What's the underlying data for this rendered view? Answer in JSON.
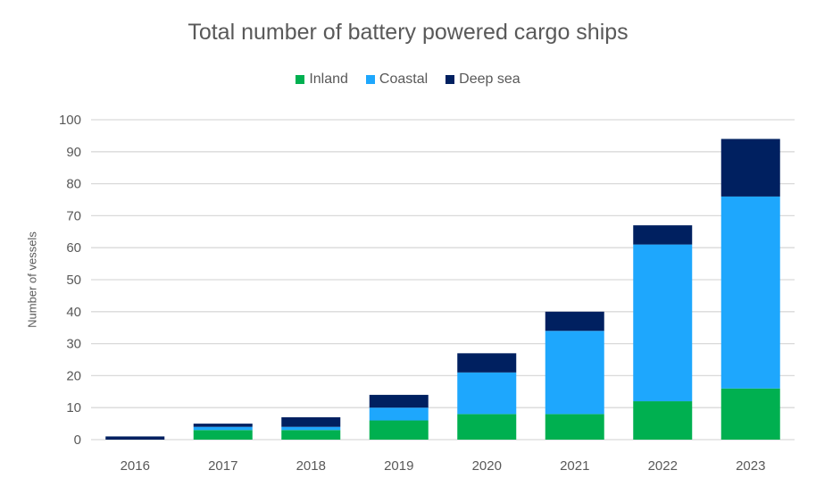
{
  "chart_data": {
    "type": "bar",
    "stacked": true,
    "title": "Total number of battery powered cargo ships",
    "xlabel": "",
    "ylabel": "Number of vessels",
    "categories": [
      "2016",
      "2017",
      "2018",
      "2019",
      "2020",
      "2021",
      "2022",
      "2023"
    ],
    "series": [
      {
        "name": "Inland",
        "color": "#00B050",
        "values": [
          0,
          3,
          3,
          6,
          8,
          8,
          12,
          16
        ]
      },
      {
        "name": "Coastal",
        "color": "#1EA7FD",
        "values": [
          0,
          1,
          1,
          4,
          13,
          26,
          49,
          60
        ]
      },
      {
        "name": "Deep sea",
        "color": "#002060",
        "values": [
          1,
          1,
          3,
          4,
          6,
          6,
          6,
          18
        ]
      }
    ],
    "ylim": [
      0,
      100
    ],
    "yticks": [
      0,
      10,
      20,
      30,
      40,
      50,
      60,
      70,
      80,
      90,
      100
    ],
    "grid": true,
    "legend_position": "top"
  }
}
